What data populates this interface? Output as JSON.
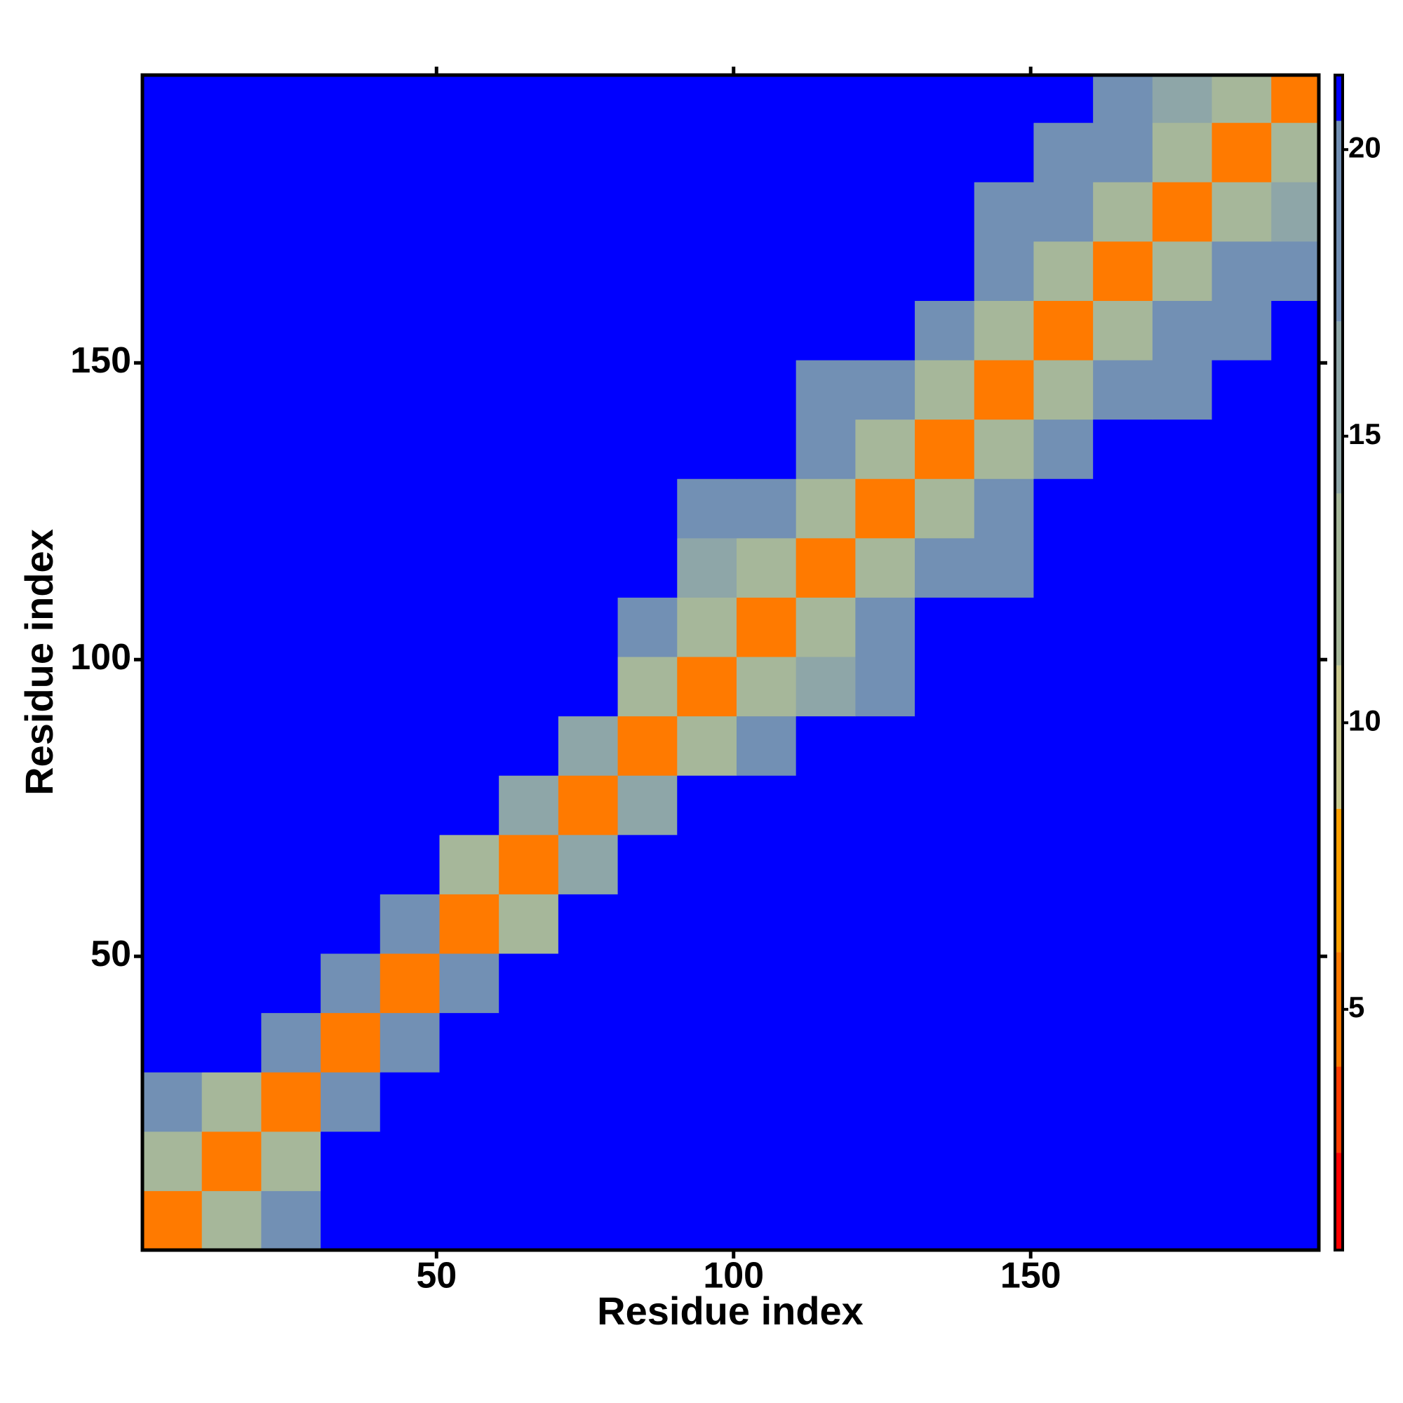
{
  "chart_data": {
    "type": "heatmap",
    "x_label": "Residue index",
    "y_label": "Residue index",
    "xbins": [
      0.5,
      10.5,
      20.5,
      30.5,
      40.5,
      50.5,
      60.5,
      70.5,
      80.5,
      90.5,
      100.5,
      110.5,
      120.5,
      130.5,
      140.5,
      150.5,
      160.5,
      170.5,
      180.5,
      190.5,
      198.5
    ],
    "ybins": [
      0.5,
      10.5,
      20.5,
      30.5,
      40.5,
      50.5,
      60.5,
      70.5,
      80.5,
      90.5,
      100.5,
      110.5,
      120.5,
      130.5,
      140.5,
      150.5,
      160.5,
      170.5,
      180.5,
      190.5,
      198.5
    ],
    "z": [
      [
        4,
        12,
        19,
        21,
        21,
        21,
        21,
        21,
        21,
        21,
        21,
        21,
        21,
        21,
        21,
        21,
        21,
        21,
        21,
        21
      ],
      [
        12,
        4,
        13,
        21,
        21,
        21,
        21,
        21,
        21,
        21,
        21,
        21,
        21,
        21,
        21,
        21,
        21,
        21,
        21,
        21
      ],
      [
        19,
        13,
        4,
        17,
        21,
        21,
        21,
        21,
        21,
        21,
        21,
        21,
        21,
        21,
        21,
        21,
        21,
        21,
        21,
        21
      ],
      [
        21,
        21,
        17,
        4,
        18,
        21,
        21,
        21,
        21,
        21,
        21,
        21,
        21,
        21,
        21,
        21,
        21,
        21,
        21,
        21
      ],
      [
        21,
        21,
        21,
        18,
        4,
        17,
        21,
        21,
        21,
        21,
        21,
        21,
        21,
        21,
        21,
        21,
        21,
        21,
        21,
        21
      ],
      [
        21,
        21,
        21,
        21,
        17,
        4,
        12,
        21,
        21,
        21,
        21,
        21,
        21,
        21,
        21,
        21,
        21,
        21,
        21,
        21
      ],
      [
        21,
        21,
        21,
        21,
        21,
        12,
        4,
        16,
        21,
        21,
        21,
        21,
        21,
        21,
        21,
        21,
        21,
        21,
        21,
        21
      ],
      [
        21,
        21,
        21,
        21,
        21,
        21,
        16,
        4,
        16,
        21,
        21,
        21,
        21,
        21,
        21,
        21,
        21,
        21,
        21,
        21
      ],
      [
        21,
        21,
        21,
        21,
        21,
        21,
        21,
        16,
        4,
        12,
        17,
        21,
        21,
        21,
        21,
        21,
        21,
        21,
        21,
        21
      ],
      [
        21,
        21,
        21,
        21,
        21,
        21,
        21,
        21,
        12,
        4,
        11,
        16,
        19,
        21,
        21,
        21,
        21,
        21,
        21,
        21
      ],
      [
        21,
        21,
        21,
        21,
        21,
        21,
        21,
        21,
        17,
        11,
        4,
        12,
        18,
        21,
        21,
        21,
        21,
        21,
        21,
        21
      ],
      [
        21,
        21,
        21,
        21,
        21,
        21,
        21,
        21,
        21,
        16,
        12,
        4,
        13,
        18,
        19,
        21,
        21,
        21,
        21,
        21
      ],
      [
        21,
        21,
        21,
        21,
        21,
        21,
        21,
        21,
        21,
        19,
        18,
        13,
        4,
        12,
        17,
        21,
        21,
        21,
        21,
        21
      ],
      [
        21,
        21,
        21,
        21,
        21,
        21,
        21,
        21,
        21,
        21,
        21,
        18,
        12,
        4,
        12,
        19,
        21,
        21,
        21,
        21
      ],
      [
        21,
        21,
        21,
        21,
        21,
        21,
        21,
        21,
        21,
        21,
        21,
        19,
        17,
        12,
        4,
        13,
        17,
        19,
        21,
        21
      ],
      [
        21,
        21,
        21,
        21,
        21,
        21,
        21,
        21,
        21,
        21,
        21,
        21,
        21,
        19,
        13,
        4,
        12,
        18,
        19,
        21
      ],
      [
        21,
        21,
        21,
        21,
        21,
        21,
        21,
        21,
        21,
        21,
        21,
        21,
        21,
        21,
        17,
        12,
        4,
        13,
        17,
        18
      ],
      [
        21,
        21,
        21,
        21,
        21,
        21,
        21,
        21,
        21,
        21,
        21,
        21,
        21,
        21,
        19,
        18,
        13,
        4,
        12,
        16
      ],
      [
        21,
        21,
        21,
        21,
        21,
        21,
        21,
        21,
        21,
        21,
        21,
        21,
        21,
        21,
        21,
        19,
        17,
        12,
        4,
        11
      ],
      [
        21,
        21,
        21,
        21,
        21,
        21,
        21,
        21,
        21,
        21,
        21,
        21,
        21,
        21,
        21,
        21,
        18,
        16,
        11,
        4
      ]
    ],
    "xlim": [
      0.5,
      198.5
    ],
    "ylim": [
      0.5,
      198.5
    ],
    "xticks": [
      50,
      100,
      150
    ],
    "yticks": [
      50,
      100,
      150
    ],
    "clim": [
      0.8,
      21.3
    ],
    "cticks": [
      5,
      10,
      15,
      20
    ],
    "colorscale": [
      {
        "value": 0.8,
        "color": "#ff0000"
      },
      {
        "value": 2.5,
        "color": "#ff3c00"
      },
      {
        "value": 4,
        "color": "#ff7a00"
      },
      {
        "value": 6,
        "color": "#ffa000"
      },
      {
        "value": 8.5,
        "color": "#c9c88e"
      },
      {
        "value": 11,
        "color": "#a6b79a"
      },
      {
        "value": 14,
        "color": "#8ea6a8"
      },
      {
        "value": 17,
        "color": "#7290b4"
      },
      {
        "value": 20.5,
        "color": "#0000ff"
      }
    ]
  }
}
